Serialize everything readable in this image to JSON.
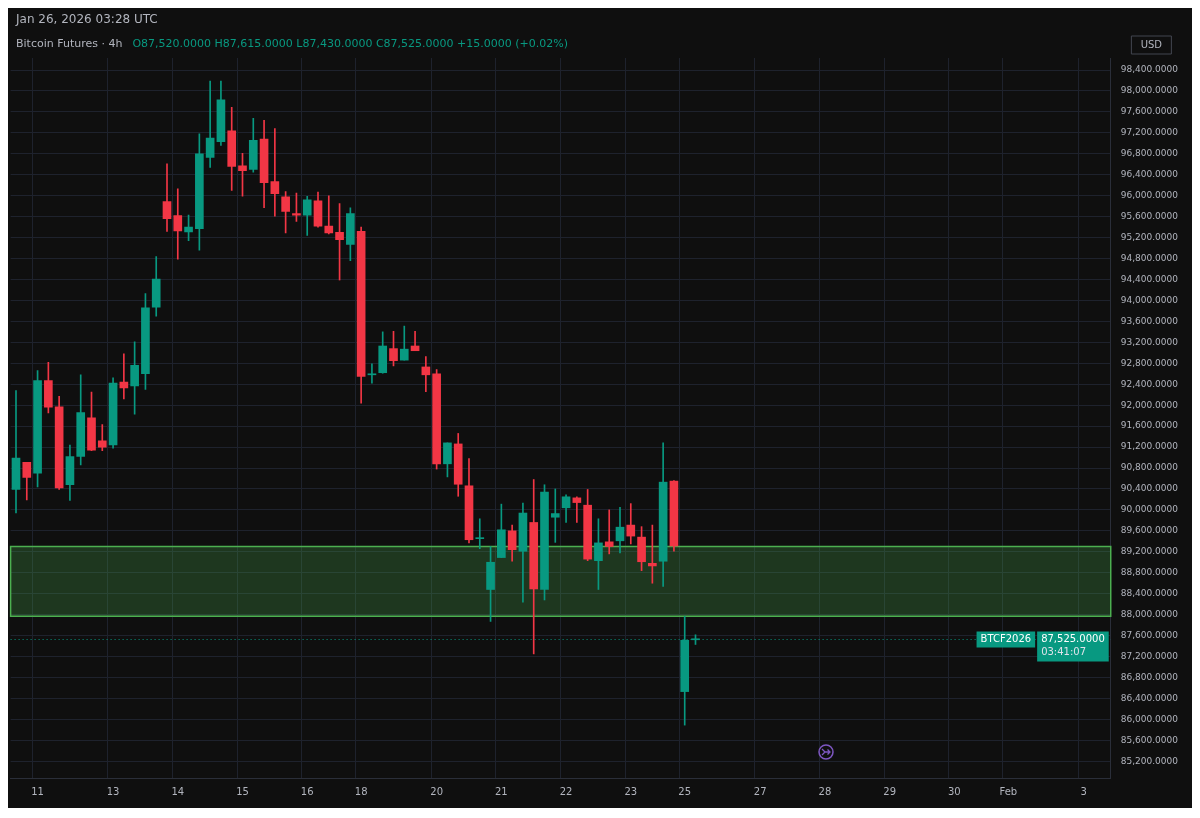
{
  "chart_data": {
    "type": "candlestick",
    "title": "Bitcoin Futures · 4h",
    "subtitle": "O87,520.0000 H87,615.0000 L87,430.0000 C87,525.0000 +15.0000 (+0.02%)",
    "ylabel": "USD",
    "annotations": [
      "Jan 26, 2026 03:28 UTC",
      "87,525.0000",
      "03:41:07"
    ],
    "categories": [
      null,
      null,
      "11",
      null,
      null,
      null,
      null,
      null,
      null,
      "13",
      null,
      null,
      null,
      null,
      null,
      "14",
      null,
      null,
      null,
      null,
      null,
      "15",
      null,
      null,
      null,
      null,
      null,
      "16",
      null,
      null,
      null,
      null,
      "18",
      null,
      null,
      null,
      null,
      null,
      null,
      "20",
      null,
      null,
      null,
      null,
      null,
      "21",
      null,
      null,
      null,
      null,
      null,
      "22",
      null,
      null,
      null,
      null,
      null,
      "23",
      null,
      null,
      null,
      null,
      "25",
      null,
      null,
      null,
      null,
      null,
      null,
      "27",
      null,
      null,
      null,
      null,
      null,
      "28",
      null,
      null,
      null,
      null,
      null,
      "29",
      null,
      null,
      null,
      null,
      null,
      "30",
      null,
      null,
      null,
      null,
      "Feb",
      null,
      null,
      null,
      null,
      null,
      null,
      "3",
      null,
      null
    ],
    "ohlc": [
      [
        90390,
        92280,
        89940,
        90990
      ],
      [
        90910,
        90910,
        90190,
        90620
      ],
      [
        90700,
        92660,
        90440,
        92470
      ],
      [
        92470,
        92820,
        91850,
        91960
      ],
      [
        91970,
        92170,
        90390,
        90420
      ],
      [
        90480,
        91240,
        90180,
        91020
      ],
      [
        91020,
        92580,
        90860,
        91860
      ],
      [
        91760,
        92250,
        91130,
        91140
      ],
      [
        91320,
        91630,
        91130,
        91200
      ],
      [
        91240,
        92520,
        91180,
        92420
      ],
      [
        92440,
        92980,
        92120,
        92330
      ],
      [
        92370,
        93210,
        91830,
        92760
      ],
      [
        92600,
        94130,
        92300,
        93860
      ],
      [
        93870,
        94840,
        93700,
        94410
      ],
      [
        95890,
        96610,
        95320,
        95560
      ],
      [
        95620,
        96130,
        94790,
        95330
      ],
      [
        95310,
        95630,
        95140,
        95400
      ],
      [
        95370,
        97180,
        94960,
        96800
      ],
      [
        96730,
        98190,
        96540,
        97100
      ],
      [
        97030,
        98190,
        96960,
        97830
      ],
      [
        97240,
        97690,
        96100,
        96560
      ],
      [
        96570,
        96810,
        95990,
        96480
      ],
      [
        96500,
        97480,
        96450,
        97060
      ],
      [
        97080,
        97440,
        95770,
        96250
      ],
      [
        96270,
        97280,
        95610,
        96040
      ],
      [
        95980,
        96080,
        95290,
        95700
      ],
      [
        95660,
        96050,
        95510,
        95630
      ],
      [
        95630,
        95990,
        95240,
        95920
      ],
      [
        95900,
        96070,
        95400,
        95420
      ],
      [
        95420,
        96000,
        95270,
        95290
      ],
      [
        95300,
        95850,
        94390,
        95160
      ],
      [
        95070,
        95770,
        94760,
        95660
      ],
      [
        95320,
        95400,
        92040,
        92550
      ],
      [
        92580,
        92790,
        92420,
        92590
      ],
      [
        92620,
        93400,
        92610,
        93130
      ],
      [
        93080,
        93410,
        92750,
        92850
      ],
      [
        92860,
        93510,
        92860,
        93070
      ],
      [
        93130,
        93410,
        93040,
        93040
      ],
      [
        92730,
        92930,
        92260,
        92580
      ],
      [
        92600,
        92680,
        90780,
        90880
      ],
      [
        90880,
        91280,
        90630,
        91280
      ],
      [
        91260,
        91460,
        90260,
        90490
      ],
      [
        90460,
        90980,
        89370,
        89430
      ],
      [
        89450,
        89830,
        89260,
        89470
      ],
      [
        88480,
        89300,
        87870,
        89000
      ],
      [
        89090,
        90110,
        89090,
        89620
      ],
      [
        89600,
        89710,
        89020,
        89240
      ],
      [
        89210,
        90130,
        88240,
        89940
      ],
      [
        89760,
        90580,
        87250,
        88490
      ],
      [
        88480,
        90480,
        88280,
        90340
      ],
      [
        89860,
        90400,
        89380,
        89930
      ],
      [
        90040,
        90290,
        89760,
        90250
      ],
      [
        90230,
        90250,
        89760,
        90140
      ],
      [
        90090,
        90390,
        89030,
        89060
      ],
      [
        89030,
        89830,
        88480,
        89370
      ],
      [
        89390,
        90000,
        89160,
        89300
      ],
      [
        89410,
        90050,
        89180,
        89670
      ],
      [
        89710,
        90120,
        89350,
        89500
      ],
      [
        89480,
        89680,
        88840,
        89010
      ],
      [
        88980,
        89710,
        88600,
        88930
      ],
      [
        89020,
        91280,
        88540,
        90530
      ],
      [
        90550,
        90560,
        89210,
        89310
      ],
      [
        86530,
        87970,
        85890,
        87510
      ],
      [
        87520,
        87615,
        87430,
        87525
      ],
      null,
      null,
      null,
      null,
      null,
      null,
      null,
      null,
      null,
      null,
      null,
      null,
      null,
      null,
      null,
      null,
      null,
      null,
      null,
      null,
      null,
      null,
      null,
      null,
      null,
      null,
      null,
      null,
      null,
      null,
      null,
      null,
      null,
      null,
      null,
      null,
      null,
      null
    ],
    "ylim": [
      84880,
      98630
    ],
    "yticks": [
      {
        "value": 85200,
        "label": "85,200.0000"
      },
      {
        "value": 85600,
        "label": "85,600.0000"
      },
      {
        "value": 86000,
        "label": "86,000.0000"
      },
      {
        "value": 86400,
        "label": "86,400.0000"
      },
      {
        "value": 86800,
        "label": "86,800.0000"
      },
      {
        "value": 87200,
        "label": "87,200.0000"
      },
      {
        "value": 87600,
        "label": "87,600.0000"
      },
      {
        "value": 88000,
        "label": "88,000.0000"
      },
      {
        "value": 88400,
        "label": "88,400.0000"
      },
      {
        "value": 88800,
        "label": "88,800.0000"
      },
      {
        "value": 89200,
        "label": "89,200.0000"
      },
      {
        "value": 89600,
        "label": "89,600.0000"
      },
      {
        "value": 90000,
        "label": "90,000.0000"
      },
      {
        "value": 90400,
        "label": "90,400.0000"
      },
      {
        "value": 90800,
        "label": "90,800.0000"
      },
      {
        "value": 91200,
        "label": "91,200.0000"
      },
      {
        "value": 91600,
        "label": "91,600.0000"
      },
      {
        "value": 92000,
        "label": "92,000.0000"
      },
      {
        "value": 92400,
        "label": "92,400.0000"
      },
      {
        "value": 92800,
        "label": "92,800.0000"
      },
      {
        "value": 93200,
        "label": "93,200.0000"
      },
      {
        "value": 93600,
        "label": "93,600.0000"
      },
      {
        "value": 94000,
        "label": "94,000.0000"
      },
      {
        "value": 94400,
        "label": "94,400.0000"
      },
      {
        "value": 94800,
        "label": "94,800.0000"
      },
      {
        "value": 95200,
        "label": "95,200.0000"
      },
      {
        "value": 95600,
        "label": "95,600.0000"
      },
      {
        "value": 96000,
        "label": "96,000.0000"
      },
      {
        "value": 96400,
        "label": "96,400.0000"
      },
      {
        "value": 96800,
        "label": "96,800.0000"
      },
      {
        "value": 97200,
        "label": "97,200.0000"
      },
      {
        "value": 97600,
        "label": "97,600.0000"
      },
      {
        "value": 98000,
        "label": "98,000.0000"
      },
      {
        "value": 98400,
        "label": "98,400.0000"
      }
    ],
    "grid": true,
    "ref_lines": [
      {
        "axis": "y",
        "value": 87525,
        "label": "BTCF2026",
        "color": "#089981",
        "line_style": "dotted"
      }
    ],
    "bands": [
      {
        "axis": "y",
        "from": 87970,
        "to": 89300,
        "color": "#4caf50"
      }
    ]
  }
}
